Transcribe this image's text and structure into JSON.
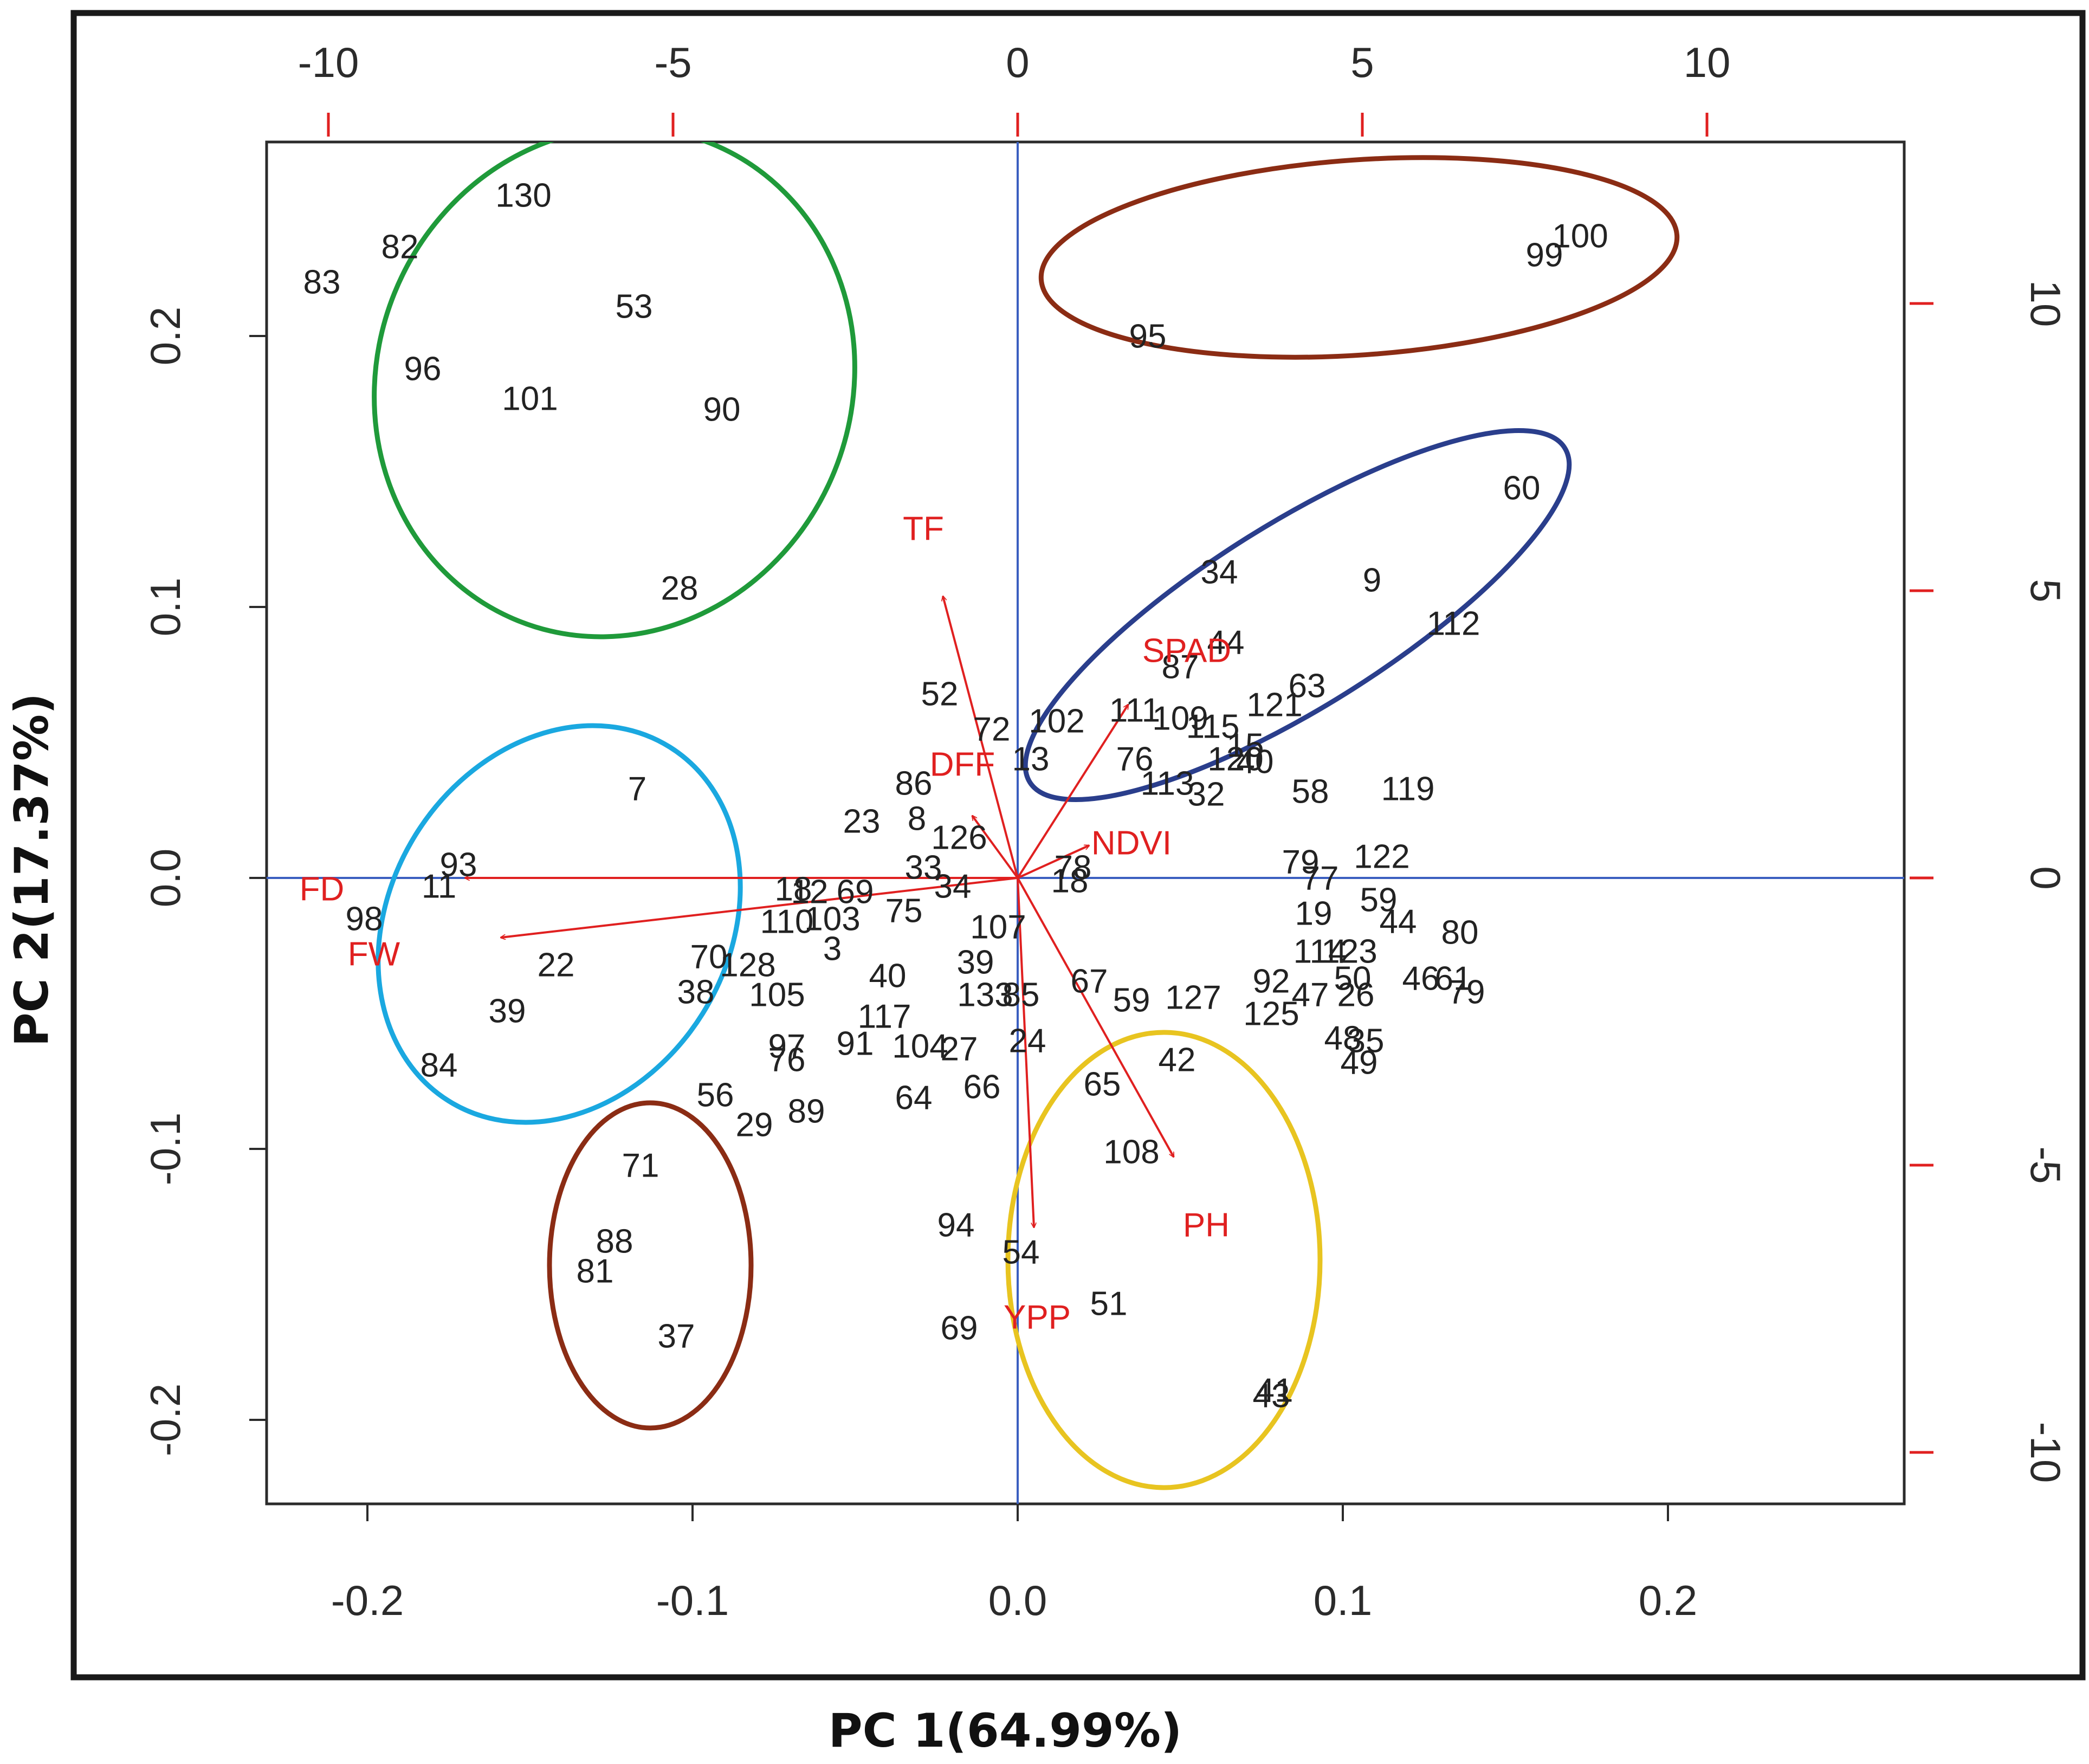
{
  "chart_data": {
    "type": "scatter",
    "subtype": "biplot",
    "title": "",
    "xlabel": "PC 1(64.99%)",
    "ylabel": "PC 2(17.37%)",
    "xlim": [
      -0.23,
      0.27
    ],
    "ylim": [
      -0.23,
      0.27
    ],
    "x_ticks": [
      -0.2,
      -0.1,
      0.0,
      0.1,
      0.2
    ],
    "x_tick_labels": [
      "-0.2",
      "-0.1",
      "0.0",
      "0.1",
      "0.2"
    ],
    "y_ticks": [
      -0.2,
      -0.1,
      0.0,
      0.1,
      0.2
    ],
    "y_tick_labels": [
      "-0.2",
      "-0.1",
      "0.0",
      "0.1",
      "0.2"
    ],
    "top_ticks": [
      -10,
      -5,
      0,
      5,
      10
    ],
    "top_tick_labels": [
      "-10",
      "-5",
      "0",
      "5",
      "10"
    ],
    "right_ticks": [
      -10,
      -5,
      0,
      5,
      10
    ],
    "right_tick_labels": [
      "-10",
      "-5",
      "0",
      "5",
      "10"
    ],
    "secondary_scale": 0.0212,
    "observations": [
      {
        "label": "130",
        "x": -0.152,
        "y": 0.251
      },
      {
        "label": "82",
        "x": -0.19,
        "y": 0.232
      },
      {
        "label": "83",
        "x": -0.214,
        "y": 0.219
      },
      {
        "label": "53",
        "x": -0.118,
        "y": 0.21
      },
      {
        "label": "96",
        "x": -0.183,
        "y": 0.187
      },
      {
        "label": "101",
        "x": -0.15,
        "y": 0.176
      },
      {
        "label": "90",
        "x": -0.091,
        "y": 0.172
      },
      {
        "label": "28",
        "x": -0.104,
        "y": 0.106
      },
      {
        "label": "95",
        "x": 0.04,
        "y": 0.199
      },
      {
        "label": "100",
        "x": 0.173,
        "y": 0.236
      },
      {
        "label": "99",
        "x": 0.162,
        "y": 0.229
      },
      {
        "label": "60",
        "x": 0.155,
        "y": 0.143
      },
      {
        "label": "34",
        "x": 0.062,
        "y": 0.112
      },
      {
        "label": "9",
        "x": 0.109,
        "y": 0.109
      },
      {
        "label": "112",
        "x": 0.134,
        "y": 0.093
      },
      {
        "label": "44",
        "x": 0.064,
        "y": 0.086
      },
      {
        "label": "87",
        "x": 0.05,
        "y": 0.077
      },
      {
        "label": "63",
        "x": 0.089,
        "y": 0.07
      },
      {
        "label": "121",
        "x": 0.079,
        "y": 0.063
      },
      {
        "label": "111",
        "x": 0.036,
        "y": 0.061
      },
      {
        "label": "109",
        "x": 0.05,
        "y": 0.058
      },
      {
        "label": "102",
        "x": 0.012,
        "y": 0.057
      },
      {
        "label": "72",
        "x": -0.008,
        "y": 0.054
      },
      {
        "label": "52",
        "x": -0.024,
        "y": 0.067
      },
      {
        "label": "115",
        "x": 0.06,
        "y": 0.055
      },
      {
        "label": "15",
        "x": 0.07,
        "y": 0.048
      },
      {
        "label": "40",
        "x": 0.073,
        "y": 0.042
      },
      {
        "label": "120",
        "x": 0.067,
        "y": 0.043
      },
      {
        "label": "13",
        "x": 0.004,
        "y": 0.043
      },
      {
        "label": "76",
        "x": 0.036,
        "y": 0.043
      },
      {
        "label": "113",
        "x": 0.046,
        "y": 0.034
      },
      {
        "label": "32",
        "x": 0.058,
        "y": 0.03
      },
      {
        "label": "58",
        "x": 0.09,
        "y": 0.031
      },
      {
        "label": "119",
        "x": 0.12,
        "y": 0.032
      },
      {
        "label": "86",
        "x": -0.032,
        "y": 0.034
      },
      {
        "label": "23",
        "x": -0.048,
        "y": 0.02
      },
      {
        "label": "8",
        "x": -0.031,
        "y": 0.021
      },
      {
        "label": "126",
        "x": -0.018,
        "y": 0.014
      },
      {
        "label": "7",
        "x": -0.117,
        "y": 0.032
      },
      {
        "label": "93",
        "x": -0.172,
        "y": 0.004
      },
      {
        "label": "11",
        "x": -0.178,
        "y": -0.004
      },
      {
        "label": "98",
        "x": -0.201,
        "y": -0.016
      },
      {
        "label": "22",
        "x": -0.142,
        "y": -0.033
      },
      {
        "label": "39",
        "x": -0.157,
        "y": -0.05
      },
      {
        "label": "84",
        "x": -0.178,
        "y": -0.07
      },
      {
        "label": "79",
        "x": 0.087,
        "y": 0.005
      },
      {
        "label": "122",
        "x": 0.112,
        "y": 0.007
      },
      {
        "label": "77",
        "x": 0.093,
        "y": -0.001
      },
      {
        "label": "59",
        "x": 0.111,
        "y": -0.009
      },
      {
        "label": "19",
        "x": 0.091,
        "y": -0.014
      },
      {
        "label": "44",
        "x": 0.117,
        "y": -0.017
      },
      {
        "label": "80",
        "x": 0.136,
        "y": -0.021
      },
      {
        "label": "114",
        "x": 0.093,
        "y": -0.028
      },
      {
        "label": "123",
        "x": 0.102,
        "y": -0.028
      },
      {
        "label": "46",
        "x": 0.124,
        "y": -0.038
      },
      {
        "label": "61",
        "x": 0.134,
        "y": -0.038
      },
      {
        "label": "79",
        "x": 0.138,
        "y": -0.043
      },
      {
        "label": "92",
        "x": 0.078,
        "y": -0.039
      },
      {
        "label": "47",
        "x": 0.09,
        "y": -0.044
      },
      {
        "label": "50",
        "x": 0.103,
        "y": -0.038
      },
      {
        "label": "26",
        "x": 0.104,
        "y": -0.044
      },
      {
        "label": "125",
        "x": 0.078,
        "y": -0.051
      },
      {
        "label": "48",
        "x": 0.1,
        "y": -0.06
      },
      {
        "label": "35",
        "x": 0.107,
        "y": -0.061
      },
      {
        "label": "49",
        "x": 0.105,
        "y": -0.069
      },
      {
        "label": "12",
        "x": -0.064,
        "y": -0.006
      },
      {
        "label": "18",
        "x": -0.069,
        "y": -0.005
      },
      {
        "label": "69",
        "x": -0.05,
        "y": -0.006
      },
      {
        "label": "75",
        "x": -0.035,
        "y": -0.013
      },
      {
        "label": "33",
        "x": -0.029,
        "y": 0.003
      },
      {
        "label": "34",
        "x": -0.02,
        "y": -0.004
      },
      {
        "label": "110",
        "x": -0.071,
        "y": -0.017
      },
      {
        "label": "103",
        "x": -0.057,
        "y": -0.016
      },
      {
        "label": "3",
        "x": -0.057,
        "y": -0.027
      },
      {
        "label": "78",
        "x": 0.017,
        "y": 0.003
      },
      {
        "label": "18",
        "x": 0.016,
        "y": -0.002
      },
      {
        "label": "107",
        "x": -0.006,
        "y": -0.019
      },
      {
        "label": "70",
        "x": -0.095,
        "y": -0.03
      },
      {
        "label": "128",
        "x": -0.083,
        "y": -0.033
      },
      {
        "label": "38",
        "x": -0.099,
        "y": -0.043
      },
      {
        "label": "105",
        "x": -0.074,
        "y": -0.044
      },
      {
        "label": "40",
        "x": -0.04,
        "y": -0.037
      },
      {
        "label": "117",
        "x": -0.041,
        "y": -0.052
      },
      {
        "label": "39",
        "x": -0.013,
        "y": -0.032
      },
      {
        "label": "133",
        "x": -0.01,
        "y": -0.044
      },
      {
        "label": "85",
        "x": 0.001,
        "y": -0.044
      },
      {
        "label": "67",
        "x": 0.022,
        "y": -0.039
      },
      {
        "label": "59",
        "x": 0.035,
        "y": -0.046
      },
      {
        "label": "127",
        "x": 0.054,
        "y": -0.045
      },
      {
        "label": "97",
        "x": -0.071,
        "y": -0.063
      },
      {
        "label": "76",
        "x": -0.071,
        "y": -0.068
      },
      {
        "label": "91",
        "x": -0.05,
        "y": -0.062
      },
      {
        "label": "104",
        "x": -0.03,
        "y": -0.063
      },
      {
        "label": "27",
        "x": -0.018,
        "y": -0.064
      },
      {
        "label": "24",
        "x": 0.003,
        "y": -0.061
      },
      {
        "label": "42",
        "x": 0.049,
        "y": -0.068
      },
      {
        "label": "56",
        "x": -0.093,
        "y": -0.081
      },
      {
        "label": "89",
        "x": -0.065,
        "y": -0.087
      },
      {
        "label": "29",
        "x": -0.081,
        "y": -0.092
      },
      {
        "label": "64",
        "x": -0.032,
        "y": -0.082
      },
      {
        "label": "66",
        "x": -0.011,
        "y": -0.078
      },
      {
        "label": "65",
        "x": 0.026,
        "y": -0.077
      },
      {
        "label": "108",
        "x": 0.035,
        "y": -0.102
      },
      {
        "label": "71",
        "x": -0.116,
        "y": -0.107
      },
      {
        "label": "88",
        "x": -0.124,
        "y": -0.135
      },
      {
        "label": "81",
        "x": -0.13,
        "y": -0.146
      },
      {
        "label": "37",
        "x": -0.105,
        "y": -0.17
      },
      {
        "label": "94",
        "x": -0.019,
        "y": -0.129
      },
      {
        "label": "54",
        "x": 0.001,
        "y": -0.139
      },
      {
        "label": "51",
        "x": 0.028,
        "y": -0.158
      },
      {
        "label": "69",
        "x": -0.018,
        "y": -0.167
      },
      {
        "label": "41",
        "x": 0.079,
        "y": -0.19
      },
      {
        "label": "43",
        "x": 0.078,
        "y": -0.192
      }
    ],
    "variables": [
      {
        "label": "TF",
        "x": -0.023,
        "y": 0.104,
        "label_x": -0.029,
        "label_y": 0.128
      },
      {
        "label": "SPAD",
        "x": 0.034,
        "y": 0.064,
        "label_x": 0.052,
        "label_y": 0.083
      },
      {
        "label": "DFF",
        "x": -0.014,
        "y": 0.023,
        "label_x": -0.017,
        "label_y": 0.041
      },
      {
        "label": "NDVI",
        "x": 0.022,
        "y": 0.012,
        "label_x": 0.035,
        "label_y": 0.012
      },
      {
        "label": "FD",
        "x": -0.17,
        "y": 0.0,
        "label_x": -0.214,
        "label_y": -0.005
      },
      {
        "label": "FW",
        "x": -0.159,
        "y": -0.022,
        "label_x": -0.198,
        "label_y": -0.029
      },
      {
        "label": "PH",
        "x": 0.048,
        "y": -0.103,
        "label_x": 0.058,
        "label_y": -0.129
      },
      {
        "label": "YPP",
        "x": 0.005,
        "y": -0.129,
        "label_x": 0.006,
        "label_y": -0.163
      }
    ],
    "clusters": [
      {
        "color": "#1f9a3a",
        "cx": -0.124,
        "cy": 0.183,
        "rx": 0.073,
        "ry": 0.095,
        "angle": 22
      },
      {
        "color": "#1aa8e0",
        "cx": -0.141,
        "cy": -0.017,
        "rx": 0.052,
        "ry": 0.077,
        "angle": 32
      },
      {
        "color": "#8b2c14",
        "cx": -0.113,
        "cy": -0.143,
        "rx": 0.031,
        "ry": 0.06,
        "angle": 0
      },
      {
        "color": "#8b2c14",
        "cx": 0.105,
        "cy": 0.229,
        "rx": 0.098,
        "ry": 0.036,
        "angle": -4
      },
      {
        "color": "#2a3e8c",
        "cx": 0.086,
        "cy": 0.097,
        "rx": 0.097,
        "ry": 0.034,
        "angle": -32
      },
      {
        "color": "#e8c420",
        "cx": 0.045,
        "cy": -0.141,
        "rx": 0.048,
        "ry": 0.084,
        "angle": 0
      }
    ],
    "colors": {
      "axes": "#2b2b2b",
      "zero_lines": "#3b5fc0",
      "arrows": "#e02020",
      "secondary_ticks": "#e02020",
      "observation_text": "#222222"
    }
  }
}
